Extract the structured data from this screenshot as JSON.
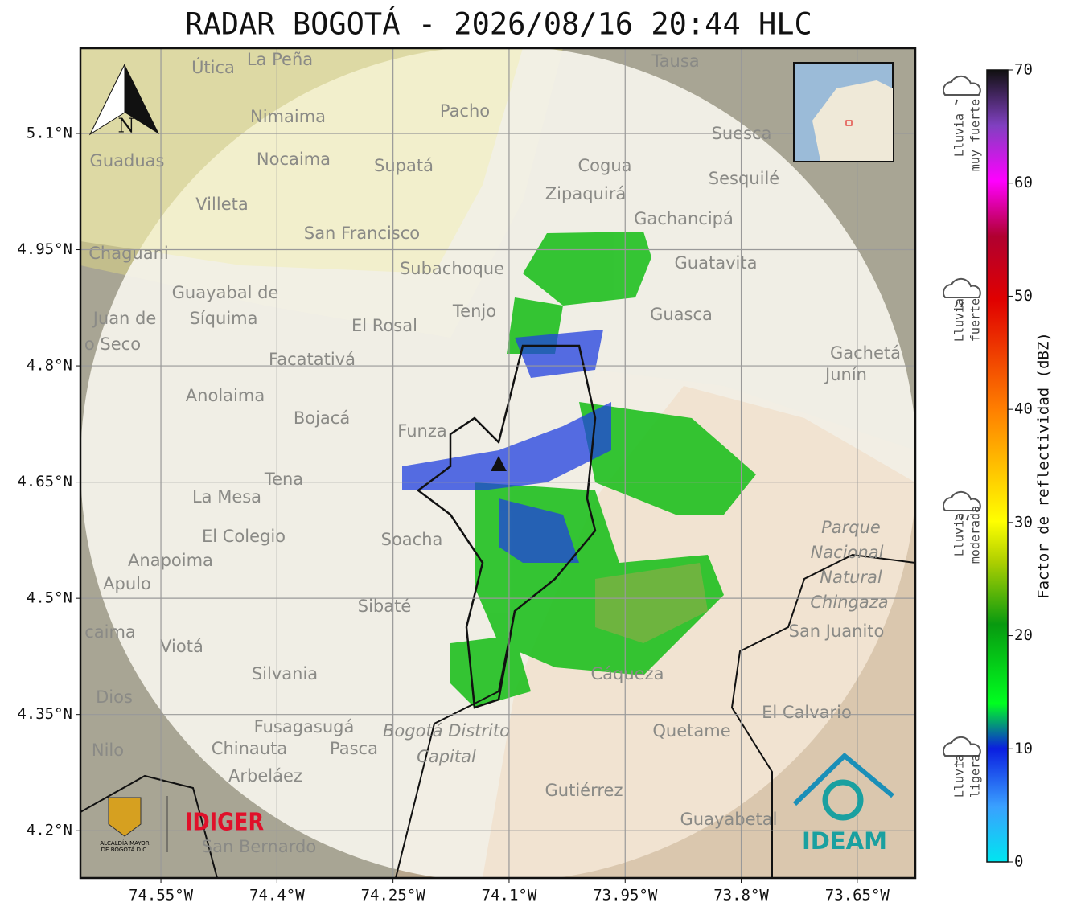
{
  "title": "RADAR BOGOTÁ - 2026/08/16 20:44 HLC",
  "map": {
    "xlim": [
      -74.654,
      -73.575
    ],
    "ylim": [
      4.139,
      5.21
    ],
    "xticks": [
      {
        "value": -74.55,
        "label": "74.55°W"
      },
      {
        "value": -74.4,
        "label": "74.4°W"
      },
      {
        "value": -74.25,
        "label": "74.25°W"
      },
      {
        "value": -74.1,
        "label": "74.1°W"
      },
      {
        "value": -73.95,
        "label": "73.95°W"
      },
      {
        "value": -73.8,
        "label": "73.8°W"
      },
      {
        "value": -73.65,
        "label": "73.65°W"
      }
    ],
    "yticks": [
      {
        "value": 5.1,
        "label": "5.1°N"
      },
      {
        "value": 4.95,
        "label": "4.95°N"
      },
      {
        "value": 4.8,
        "label": "4.8°N"
      },
      {
        "value": 4.65,
        "label": "4.65°N"
      },
      {
        "value": 4.5,
        "label": "4.5°N"
      },
      {
        "value": 4.35,
        "label": "4.35°N"
      },
      {
        "value": 4.2,
        "label": "4.2°N"
      }
    ],
    "north": "N",
    "places": [
      "Útica",
      "La Peña",
      "Tausa",
      "Pacho",
      "Nimaima",
      "Suesca",
      "Guaduas",
      "Nocaima",
      "Supatá",
      "Cogua",
      "Sesquilé",
      "Zipaquirá",
      "Villeta",
      "Gachancipá",
      "San Francisco",
      "Chaguani",
      "Guatavita",
      "Subachoque",
      "Guayabal de",
      "Síquima",
      "Tenjo",
      "Guasca",
      "Juan de",
      "o Seco",
      "El Rosal",
      "Facatativá",
      "Gachetá",
      "Junín",
      "Anolaima",
      "Bojacá",
      "Funza",
      "Tena",
      "La Mesa",
      "El Colegio",
      "Soacha",
      "Parque",
      "Nacional",
      "Natural",
      "Chingaza",
      "Anapoima",
      "Apulo",
      "San Juanito",
      "Sibaté",
      "caima",
      "Viotá",
      "Silvania",
      "Cáqueza",
      "Dios",
      "El Calvario",
      "Fusagasugá",
      "Bogotá Distrito",
      "Capital",
      "Quetame",
      "Nilo",
      "Chinauta",
      "Pasca",
      "Arbeláez",
      "Gutiérrez",
      "Guayabetal",
      "San Bernardo"
    ]
  },
  "logos": {
    "alcaldia": [
      "ALCALDÍA MAYOR",
      "DE BOGOTÁ D.C."
    ],
    "idiger": "IDIGER",
    "ideam": "IDEAM"
  },
  "colorbar": {
    "label": "Factor de reflectividad (dBZ)",
    "vlim": [
      0,
      70
    ],
    "ticks": [
      0,
      10,
      20,
      30,
      40,
      50,
      60,
      70
    ],
    "legend": [
      [
        "Lluvia",
        "muy fuerte"
      ],
      [
        "Lluvia",
        "fuerte"
      ],
      [
        "Lluvia",
        "moderada"
      ],
      [
        "Lluvia",
        "ligera"
      ]
    ]
  }
}
